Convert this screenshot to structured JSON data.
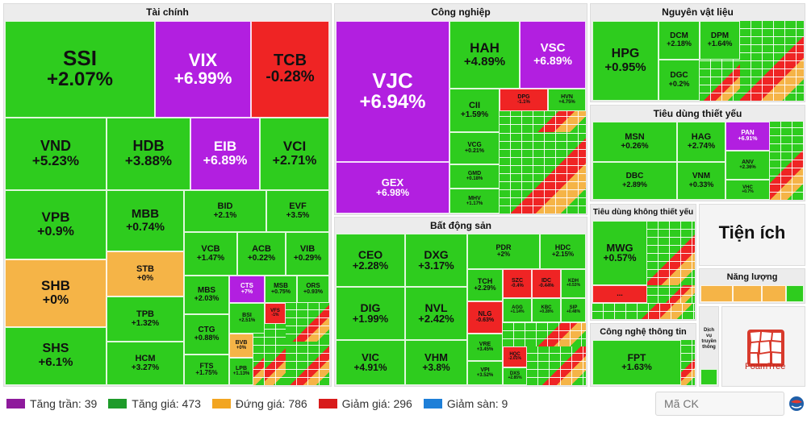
{
  "sectors": {
    "tai_chinh": "Tài chính",
    "cong_nghiep": "Công nghiệp",
    "nguyen_vat_lieu": "Nguyên vật liệu",
    "tieu_dung_thiet_yeu": "Tiêu dùng thiết yếu",
    "bat_dong_san": "Bất động sản",
    "tieu_dung_khong_thiet_yeu": "Tiêu dùng không thiết yếu",
    "tien_ich": "Tiện ích",
    "nang_luong": "Năng lượng",
    "cong_nghe_thong_tin": "Công nghệ thông tin",
    "dich_vu_truyen_thong": "Dịch vụ truyền thông"
  },
  "tiles": {
    "ssi": {
      "symbol": "SSI",
      "change": "+2.07%"
    },
    "vix": {
      "symbol": "VIX",
      "change": "+6.99%"
    },
    "tcb": {
      "symbol": "TCB",
      "change": "-0.28%"
    },
    "vnd": {
      "symbol": "VND",
      "change": "+5.23%"
    },
    "hdb": {
      "symbol": "HDB",
      "change": "+3.88%"
    },
    "eib": {
      "symbol": "EIB",
      "change": "+6.89%"
    },
    "vci": {
      "symbol": "VCI",
      "change": "+2.71%"
    },
    "vpb": {
      "symbol": "VPB",
      "change": "+0.9%"
    },
    "mbb": {
      "symbol": "MBB",
      "change": "+0.74%"
    },
    "bid": {
      "symbol": "BID",
      "change": "+2.1%"
    },
    "evf": {
      "symbol": "EVF",
      "change": "+3.5%"
    },
    "vcb": {
      "symbol": "VCB",
      "change": "+1.47%"
    },
    "acb": {
      "symbol": "ACB",
      "change": "+0.22%"
    },
    "vib": {
      "symbol": "VIB",
      "change": "+0.29%"
    },
    "shb": {
      "symbol": "SHB",
      "change": "+0%"
    },
    "stb": {
      "symbol": "STB",
      "change": "+0%"
    },
    "mbs": {
      "symbol": "MBS",
      "change": "+2.03%"
    },
    "cts": {
      "symbol": "CTS",
      "change": "+7%"
    },
    "msb": {
      "symbol": "MSB",
      "change": "+0.75%"
    },
    "ors": {
      "symbol": "ORS",
      "change": "+0.93%"
    },
    "tpb": {
      "symbol": "TPB",
      "change": "+1.32%"
    },
    "ctg": {
      "symbol": "CTG",
      "change": "+0.88%"
    },
    "bsi": {
      "symbol": "BSI",
      "change": "+2.51%"
    },
    "vfs": {
      "symbol": "VFS",
      "change": "-1%"
    },
    "shs": {
      "symbol": "SHS",
      "change": "+6.1%"
    },
    "hcm": {
      "symbol": "HCM",
      "change": "+3.27%"
    },
    "bvb": {
      "symbol": "BVB",
      "change": "+0%"
    },
    "fts": {
      "symbol": "FTS",
      "change": "+1.75%"
    },
    "lpb": {
      "symbol": "LPB",
      "change": "+1.13%"
    },
    "vjc": {
      "symbol": "VJC",
      "change": "+6.94%"
    },
    "hah": {
      "symbol": "HAH",
      "change": "+4.89%"
    },
    "vsc": {
      "symbol": "VSC",
      "change": "+6.89%"
    },
    "cii": {
      "symbol": "CII",
      "change": "+1.59%"
    },
    "dpg": {
      "symbol": "DPG",
      "change": "-1.1%"
    },
    "hvn": {
      "symbol": "HVN",
      "change": "+4.75%"
    },
    "vcg": {
      "symbol": "VCG",
      "change": "+0.21%"
    },
    "gmd": {
      "symbol": "GMD",
      "change": "+0.18%"
    },
    "mhv": {
      "symbol": "MHV",
      "change": "+1.17%"
    },
    "gex": {
      "symbol": "GEX",
      "change": "+6.98%"
    },
    "hpg": {
      "symbol": "HPG",
      "change": "+0.95%"
    },
    "dcm": {
      "symbol": "DCM",
      "change": "+2.18%"
    },
    "dpm": {
      "symbol": "DPM",
      "change": "+1.64%"
    },
    "dgc": {
      "symbol": "DGC",
      "change": "+0.2%"
    },
    "msn": {
      "symbol": "MSN",
      "change": "+0.26%"
    },
    "hag": {
      "symbol": "HAG",
      "change": "+2.74%"
    },
    "pan": {
      "symbol": "PAN",
      "change": "+6.91%"
    },
    "anv": {
      "symbol": "ANV",
      "change": "+2.36%"
    },
    "dbc": {
      "symbol": "DBC",
      "change": "+2.89%"
    },
    "vnm": {
      "symbol": "VNM",
      "change": "+0.33%"
    },
    "vhc": {
      "symbol": "VHC",
      "change": "+0.7%"
    },
    "ceo": {
      "symbol": "CEO",
      "change": "+2.28%"
    },
    "dxg": {
      "symbol": "DXG",
      "change": "+3.17%"
    },
    "pdr": {
      "symbol": "PDR",
      "change": "+2%"
    },
    "hdc": {
      "symbol": "HDC",
      "change": "+2.15%"
    },
    "dig": {
      "symbol": "DIG",
      "change": "+1.99%"
    },
    "nvl": {
      "symbol": "NVL",
      "change": "+2.42%"
    },
    "tch": {
      "symbol": "TCH",
      "change": "+2.29%"
    },
    "szc": {
      "symbol": "SZC",
      "change": "-0.4%"
    },
    "idc": {
      "symbol": "IDC",
      "change": "-0.44%"
    },
    "kdh": {
      "symbol": "KDH",
      "change": "+0.53%"
    },
    "nlg": {
      "symbol": "NLG",
      "change": "-0.63%"
    },
    "agg": {
      "symbol": "AGG",
      "change": "+1.14%"
    },
    "kbc": {
      "symbol": "KBC",
      "change": "+0.28%"
    },
    "sip": {
      "symbol": "SIP",
      "change": "+0.48%"
    },
    "vic": {
      "symbol": "VIC",
      "change": "+4.91%"
    },
    "vhm": {
      "symbol": "VHM",
      "change": "+3.8%"
    },
    "vre": {
      "symbol": "VRE",
      "change": "+3.45%"
    },
    "hqc": {
      "symbol": "HQC",
      "change": "-2.01%"
    },
    "vpi": {
      "symbol": "VPI",
      "change": "+3.52%"
    },
    "dxs": {
      "symbol": "DXS",
      "change": "+2.85%"
    },
    "mwg": {
      "symbol": "MWG",
      "change": "+0.57%"
    },
    "fpt": {
      "symbol": "FPT",
      "change": "+1.63%"
    }
  },
  "legend": {
    "tang_tran": "Tăng trần: 39",
    "tang_gia": "Tăng giá: 473",
    "dung_gia": "Đứng giá: 786",
    "giam_gia": "Giảm giá: 296",
    "giam_san": "Giảm sàn: 9"
  },
  "colors": {
    "tang_tran": "#8e1a9c",
    "tang_gia": "#1e9b2a",
    "dung_gia": "#f2a521",
    "giam_gia": "#d81b1b",
    "giam_san": "#1e7fd8",
    "tile_green": "#2ecc1e",
    "tile_purple": "#b21fe0",
    "tile_red": "#ef2424",
    "tile_yellow": "#f5b447"
  },
  "search": {
    "placeholder": "Mã CK"
  },
  "brand": {
    "foamtree": "FoamTree"
  },
  "more": "..."
}
